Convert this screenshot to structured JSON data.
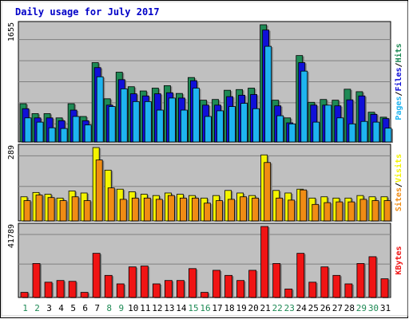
{
  "chart_data": [
    {
      "type": "bar",
      "title": "Daily usage for July 2017",
      "categories": [
        "1",
        "2",
        "3",
        "4",
        "5",
        "6",
        "7",
        "8",
        "9",
        "10",
        "11",
        "12",
        "13",
        "14",
        "15",
        "16",
        "17",
        "18",
        "19",
        "20",
        "21",
        "22",
        "23",
        "24",
        "25",
        "26",
        "27",
        "28",
        "29",
        "30",
        "31"
      ],
      "weekend_days": [
        "1",
        "2",
        "8",
        "9",
        "15",
        "16",
        "22",
        "23",
        "29",
        "30"
      ],
      "ymax_label": "1655",
      "ylim": [
        0,
        1655
      ],
      "grid": true,
      "legend": "right",
      "series": [
        {
          "name": "Hits",
          "color": "#1e8a55",
          "values": [
            540,
            400,
            400,
            340,
            540,
            360,
            1120,
            610,
            985,
            780,
            720,
            760,
            795,
            685,
            910,
            590,
            600,
            730,
            740,
            760,
            1655,
            590,
            340,
            1220,
            560,
            600,
            590,
            745,
            710,
            420,
            350
          ]
        },
        {
          "name": "Files",
          "color": "#1010d8",
          "values": [
            470,
            340,
            340,
            300,
            450,
            300,
            1050,
            520,
            880,
            680,
            650,
            680,
            695,
            620,
            865,
            520,
            520,
            640,
            660,
            670,
            1580,
            510,
            270,
            1120,
            520,
            520,
            510,
            595,
            650,
            390,
            330
          ]
        },
        {
          "name": "Pages",
          "color": "#1eb4f0",
          "values": [
            340,
            280,
            200,
            190,
            360,
            240,
            920,
            500,
            750,
            570,
            570,
            450,
            620,
            450,
            760,
            360,
            440,
            500,
            545,
            470,
            1350,
            370,
            255,
            1000,
            280,
            520,
            340,
            255,
            290,
            280,
            195
          ]
        }
      ]
    },
    {
      "type": "bar",
      "categories": [
        "1",
        "2",
        "3",
        "4",
        "5",
        "6",
        "7",
        "8",
        "9",
        "10",
        "11",
        "12",
        "13",
        "14",
        "15",
        "16",
        "17",
        "18",
        "19",
        "20",
        "21",
        "22",
        "23",
        "24",
        "25",
        "26",
        "27",
        "28",
        "29",
        "30",
        "31"
      ],
      "ymax_label": "289",
      "ylim": [
        0,
        289
      ],
      "grid": true,
      "legend": "right",
      "series": [
        {
          "name": "Visits",
          "color": "#f4f400",
          "values": [
            95,
            112,
            105,
            90,
            118,
            110,
            289,
            200,
            125,
            115,
            105,
            100,
            110,
            105,
            100,
            90,
            100,
            120,
            110,
            100,
            260,
            120,
            110,
            125,
            90,
            95,
            90,
            90,
            100,
            95,
            95
          ]
        },
        {
          "name": "Sites",
          "color": "#f08c14",
          "values": [
            80,
            102,
            92,
            80,
            95,
            80,
            240,
            130,
            85,
            90,
            90,
            85,
            100,
            90,
            90,
            70,
            80,
            85,
            95,
            90,
            230,
            90,
            82,
            122,
            65,
            72,
            75,
            75,
            85,
            80,
            80
          ]
        }
      ]
    },
    {
      "type": "bar",
      "categories": [
        "1",
        "2",
        "3",
        "4",
        "5",
        "6",
        "7",
        "8",
        "9",
        "10",
        "11",
        "12",
        "13",
        "14",
        "15",
        "16",
        "17",
        "18",
        "19",
        "20",
        "21",
        "22",
        "23",
        "24",
        "25",
        "26",
        "27",
        "28",
        "29",
        "30",
        "31"
      ],
      "ymax_label": "41789",
      "ylim": [
        0,
        41789
      ],
      "grid": true,
      "legend": "right",
      "series": [
        {
          "name": "KBytes",
          "color": "#f01414",
          "values": [
            3000,
            20000,
            9000,
            10000,
            9500,
            3000,
            26000,
            13000,
            8000,
            18000,
            18500,
            8000,
            10000,
            10000,
            17000,
            3000,
            16000,
            13000,
            10000,
            16000,
            41789,
            20000,
            5000,
            26000,
            9000,
            18000,
            13000,
            8000,
            20000,
            24000,
            11000
          ]
        }
      ]
    }
  ],
  "legend_separator": "/"
}
